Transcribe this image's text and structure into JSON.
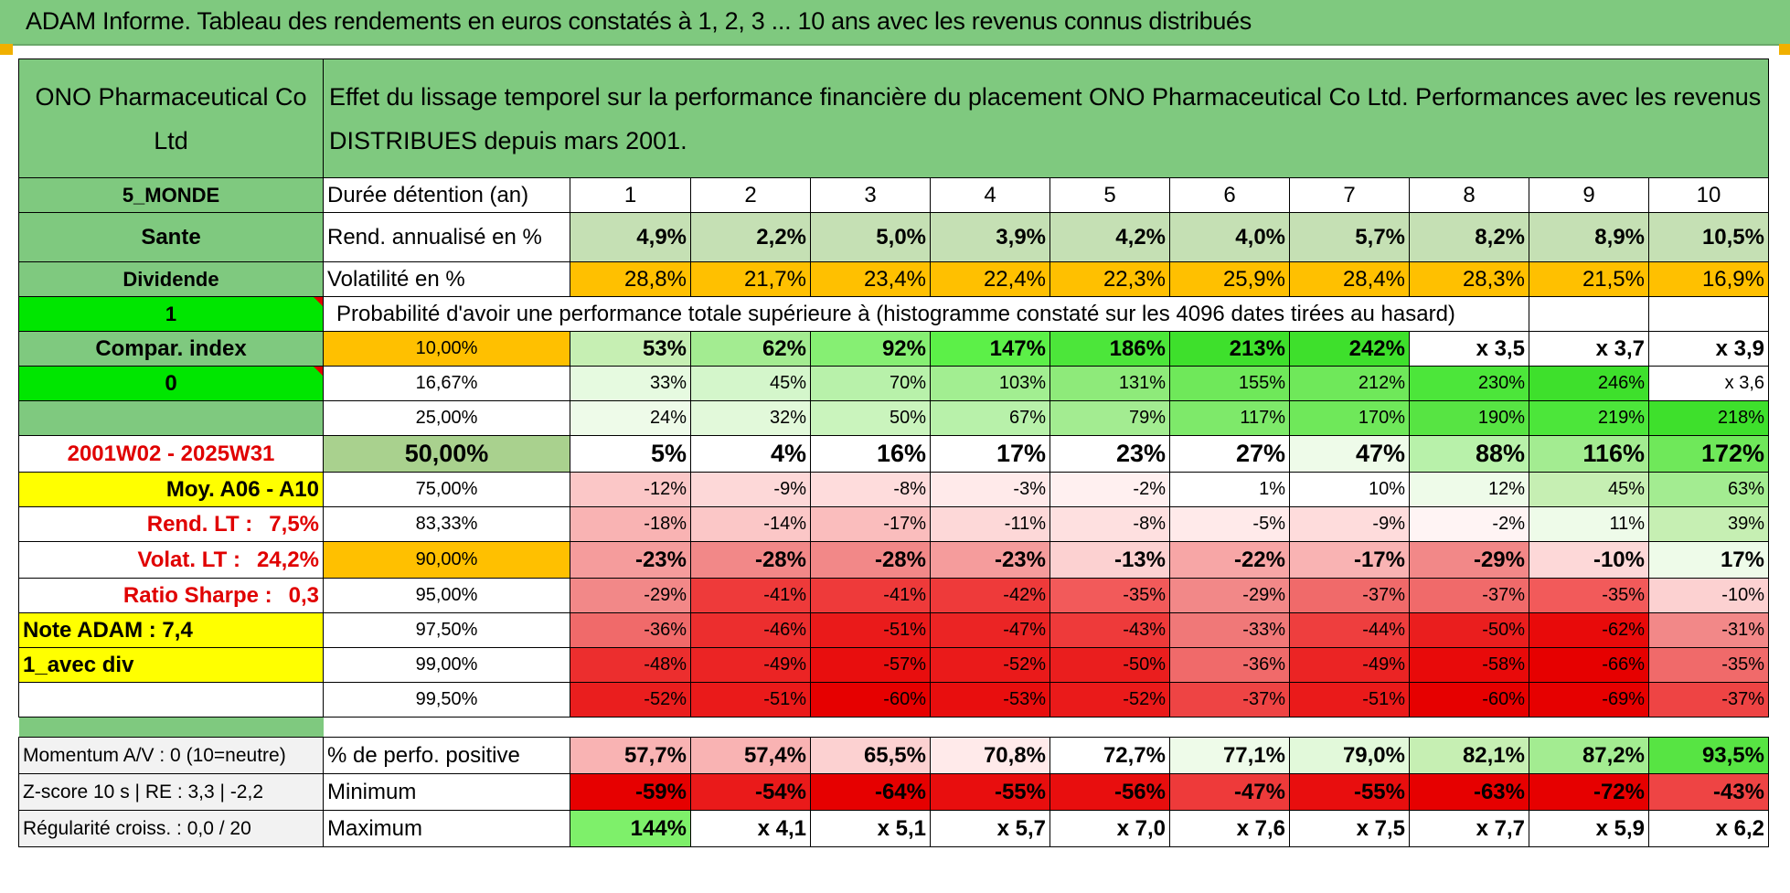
{
  "title": "ADAM Informe. Tableau des rendements en euros constatés à 1, 2, 3 ... 10 ans avec les revenus connus distribués",
  "company": "ONO Pharmaceutical Co Ltd",
  "description": "Effet du lissage temporel sur la performance financière du placement ONO Pharmaceutical Co Ltd. Performances avec les revenus DISTRIBUES depuis mars 2001.",
  "side": {
    "zone": "5_MONDE",
    "sector": "Sante",
    "type": "Dividende",
    "index_flag": "1",
    "compar_index": "Compar. index",
    "zero_flag": "0",
    "period": "2001W02 - 2025W31",
    "moy": "Moy. A06 - A10",
    "rend_lt_label": "Rend. LT :",
    "rend_lt_value": "7,5%",
    "volat_lt_label": "Volat. LT :",
    "volat_lt_value": "24,2%",
    "sharpe_label": "Ratio Sharpe :",
    "sharpe_value": "0,3",
    "note": "Note ADAM : 7,4",
    "avec_div": "1_avec div",
    "momentum": "Momentum A/V : 0 (10=neutre)",
    "zscore": "Z-score 10 s | RE : 3,3 | -2,2",
    "regularite": "Régularité croiss. : 0,0 / 20"
  },
  "row_labels": {
    "duree": "Durée détention (an)",
    "rend": "Rend. annualisé en %",
    "volat": "Volatilité en %",
    "proba": "Probabilité d'avoir une performance totale supérieure à (histogramme constaté sur les 4096 dates tirées au hasard)",
    "positive": "% de perfo. positive",
    "minimum": "Minimum",
    "maximum": "Maximum"
  },
  "years": [
    "1",
    "2",
    "3",
    "4",
    "5",
    "6",
    "7",
    "8",
    "9",
    "10"
  ],
  "rend": [
    "4,9%",
    "2,2%",
    "5,0%",
    "3,9%",
    "4,2%",
    "4,0%",
    "5,7%",
    "8,2%",
    "8,9%",
    "10,5%"
  ],
  "volat": [
    "28,8%",
    "21,7%",
    "23,4%",
    "22,4%",
    "22,3%",
    "25,9%",
    "28,4%",
    "28,3%",
    "21,5%",
    "16,9%"
  ],
  "quantiles": [
    {
      "q": "10,00%",
      "v": [
        "53%",
        "62%",
        "92%",
        "147%",
        "186%",
        "213%",
        "242%",
        "x 3,5",
        "x 3,7",
        "x 3,9"
      ]
    },
    {
      "q": "16,67%",
      "v": [
        "33%",
        "45%",
        "70%",
        "103%",
        "131%",
        "155%",
        "212%",
        "230%",
        "246%",
        "x 3,6"
      ]
    },
    {
      "q": "25,00%",
      "v": [
        "24%",
        "32%",
        "50%",
        "67%",
        "79%",
        "117%",
        "170%",
        "190%",
        "219%",
        "218%"
      ]
    },
    {
      "q": "50,00%",
      "v": [
        "5%",
        "4%",
        "16%",
        "17%",
        "23%",
        "27%",
        "47%",
        "88%",
        "116%",
        "172%"
      ]
    },
    {
      "q": "75,00%",
      "v": [
        "-12%",
        "-9%",
        "-8%",
        "-3%",
        "-2%",
        "1%",
        "10%",
        "12%",
        "45%",
        "63%"
      ]
    },
    {
      "q": "83,33%",
      "v": [
        "-18%",
        "-14%",
        "-17%",
        "-11%",
        "-8%",
        "-5%",
        "-9%",
        "-2%",
        "11%",
        "39%"
      ]
    },
    {
      "q": "90,00%",
      "v": [
        "-23%",
        "-28%",
        "-28%",
        "-23%",
        "-13%",
        "-22%",
        "-17%",
        "-29%",
        "-10%",
        "17%"
      ]
    },
    {
      "q": "95,00%",
      "v": [
        "-29%",
        "-41%",
        "-41%",
        "-42%",
        "-35%",
        "-29%",
        "-37%",
        "-37%",
        "-35%",
        "-10%"
      ]
    },
    {
      "q": "97,50%",
      "v": [
        "-36%",
        "-46%",
        "-51%",
        "-47%",
        "-43%",
        "-33%",
        "-44%",
        "-50%",
        "-62%",
        "-31%"
      ]
    },
    {
      "q": "99,00%",
      "v": [
        "-48%",
        "-49%",
        "-57%",
        "-52%",
        "-50%",
        "-36%",
        "-49%",
        "-58%",
        "-66%",
        "-35%"
      ]
    },
    {
      "q": "99,50%",
      "v": [
        "-52%",
        "-51%",
        "-60%",
        "-53%",
        "-52%",
        "-37%",
        "-51%",
        "-60%",
        "-69%",
        "-37%"
      ]
    }
  ],
  "positive": [
    "57,7%",
    "57,4%",
    "65,5%",
    "70,8%",
    "72,7%",
    "77,1%",
    "79,0%",
    "82,1%",
    "87,2%",
    "93,5%"
  ],
  "minimum": [
    "-59%",
    "-54%",
    "-64%",
    "-55%",
    "-56%",
    "-47%",
    "-55%",
    "-63%",
    "-72%",
    "-43%"
  ],
  "maximum": [
    "144%",
    "x 4,1",
    "x 5,1",
    "x 5,7",
    "x 7,0",
    "x 7,6",
    "x 7,5",
    "x 7,7",
    "x 5,9",
    "x 6,2"
  ],
  "colors": {
    "header_green": "#7fc97f",
    "pale_green": "#c5e0b4",
    "bright_green": "#00e600",
    "yellow": "#ffff00",
    "orange": "#ffc000",
    "label_red": "#e00000"
  }
}
